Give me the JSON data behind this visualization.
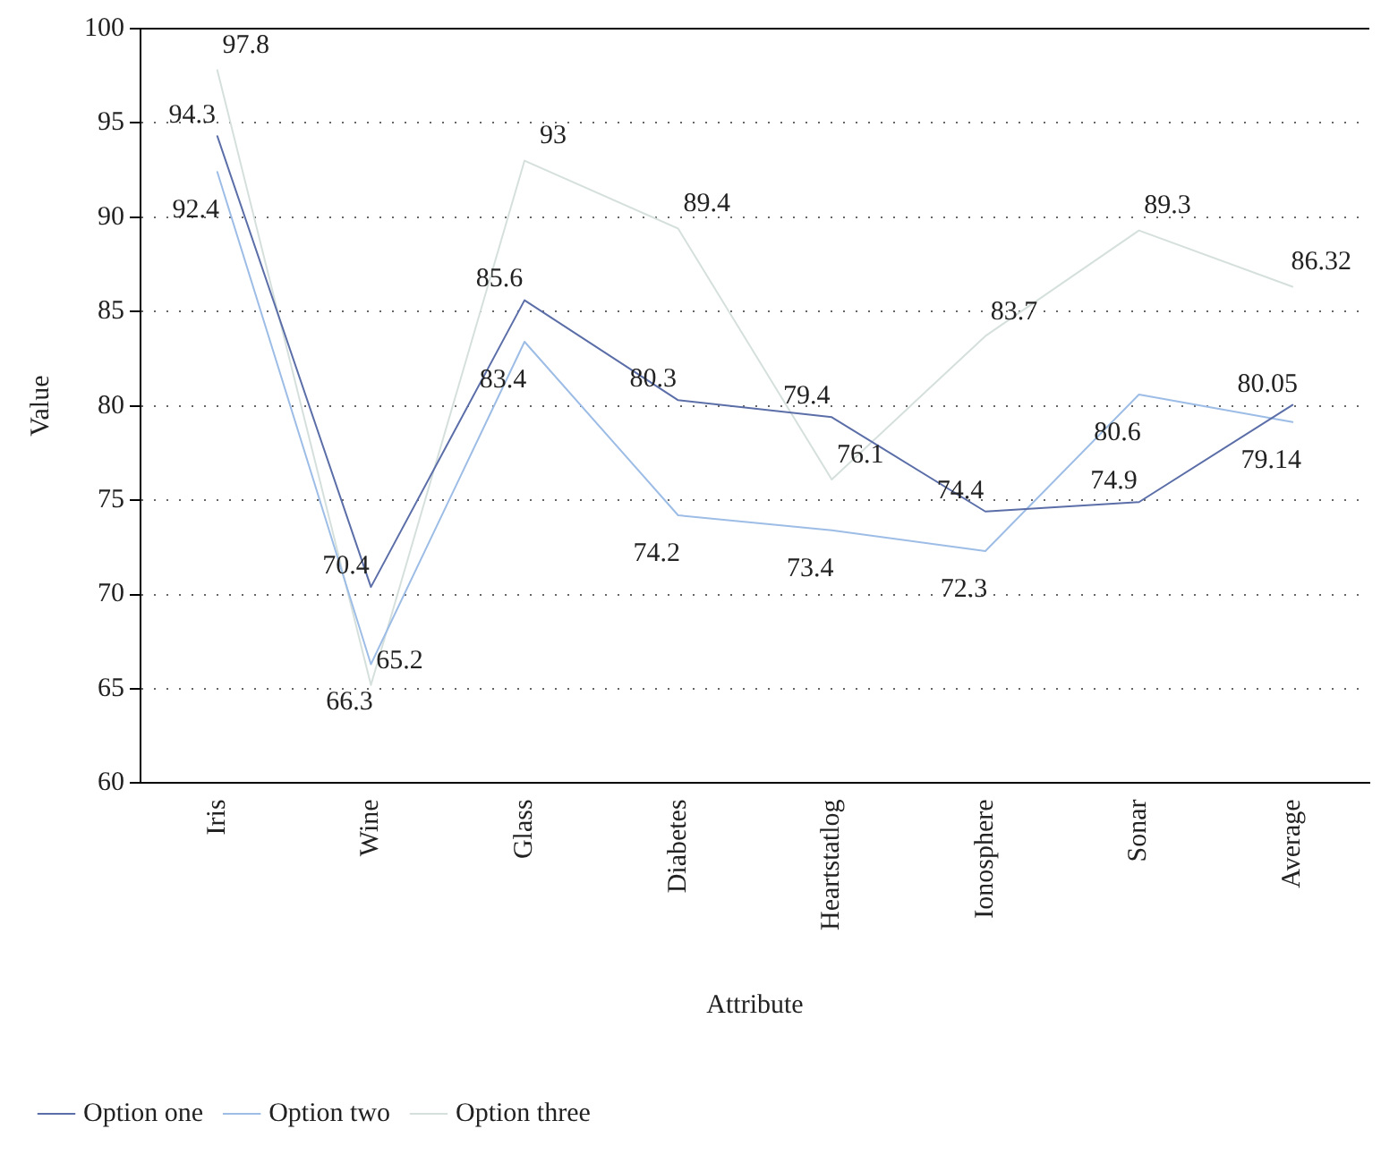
{
  "chart_data": {
    "type": "line",
    "xlabel": "Attribute",
    "ylabel": "Value",
    "categories": [
      "Iris",
      "Wine",
      "Glass",
      "Diabetes",
      "Heartstatlog",
      "Ionosphere",
      "Sonar",
      "Average"
    ],
    "series": [
      {
        "name": "Option one",
        "color": "#5b6ea8",
        "values": [
          94.3,
          70.4,
          85.6,
          80.3,
          79.4,
          74.4,
          74.9,
          80.05
        ]
      },
      {
        "name": "Option two",
        "color": "#9dbde6",
        "values": [
          92.4,
          66.3,
          83.4,
          74.2,
          73.4,
          72.3,
          80.6,
          79.14
        ]
      },
      {
        "name": "Option three",
        "color": "#d5e0dc",
        "values": [
          97.8,
          65.2,
          93,
          89.4,
          76.1,
          83.7,
          89.3,
          86.32
        ]
      }
    ],
    "ylim": [
      60,
      100
    ],
    "yticks": [
      60,
      65,
      70,
      75,
      80,
      85,
      90,
      95,
      100
    ],
    "grid": "y",
    "legend": "bottom left",
    "data_labels": true,
    "marker": "none",
    "line_style": "solid"
  }
}
